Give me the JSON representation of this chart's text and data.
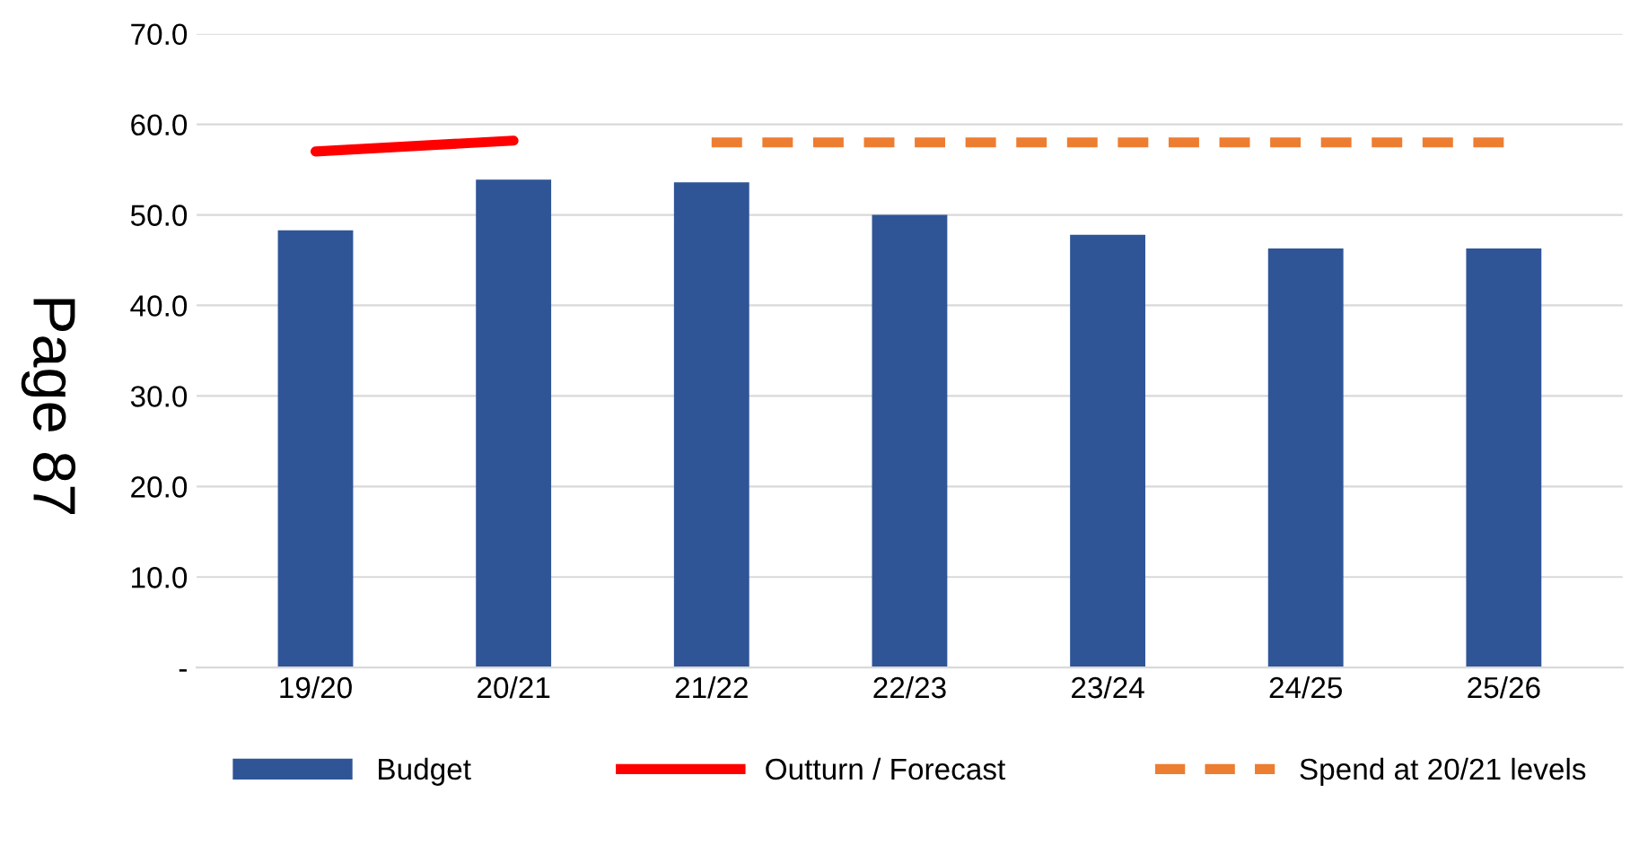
{
  "chart_data": {
    "type": "bar",
    "categories": [
      "19/20",
      "20/21",
      "21/22",
      "22/23",
      "23/24",
      "24/25",
      "25/26"
    ],
    "series": [
      {
        "name": "Budget",
        "type": "bar",
        "color": "#2f5597",
        "values": [
          48.3,
          53.9,
          53.6,
          50.0,
          47.8,
          46.3,
          46.3
        ]
      },
      {
        "name": "Outturn / Forecast",
        "type": "line",
        "color": "#ff0000",
        "line_style": "solid",
        "values": [
          57.0,
          58.2,
          null,
          null,
          null,
          null,
          null
        ]
      },
      {
        "name": "Spend at 20/21 levels",
        "type": "line",
        "color": "#ed7d31",
        "line_style": "dashed",
        "values": [
          null,
          null,
          58.0,
          58.0,
          58.0,
          58.0,
          58.0
        ]
      }
    ],
    "ylim": [
      0,
      70
    ],
    "yticks": [
      {
        "value": 0,
        "label": "-"
      },
      {
        "value": 10,
        "label": "10.0"
      },
      {
        "value": 20,
        "label": "20.0"
      },
      {
        "value": 30,
        "label": "30.0"
      },
      {
        "value": 40,
        "label": "40.0"
      },
      {
        "value": 50,
        "label": "50.0"
      },
      {
        "value": 60,
        "label": "60.0"
      },
      {
        "value": 70,
        "label": "70.0"
      }
    ],
    "grid": "y",
    "legend": "bottom",
    "annotations": [
      "Page 87"
    ]
  }
}
